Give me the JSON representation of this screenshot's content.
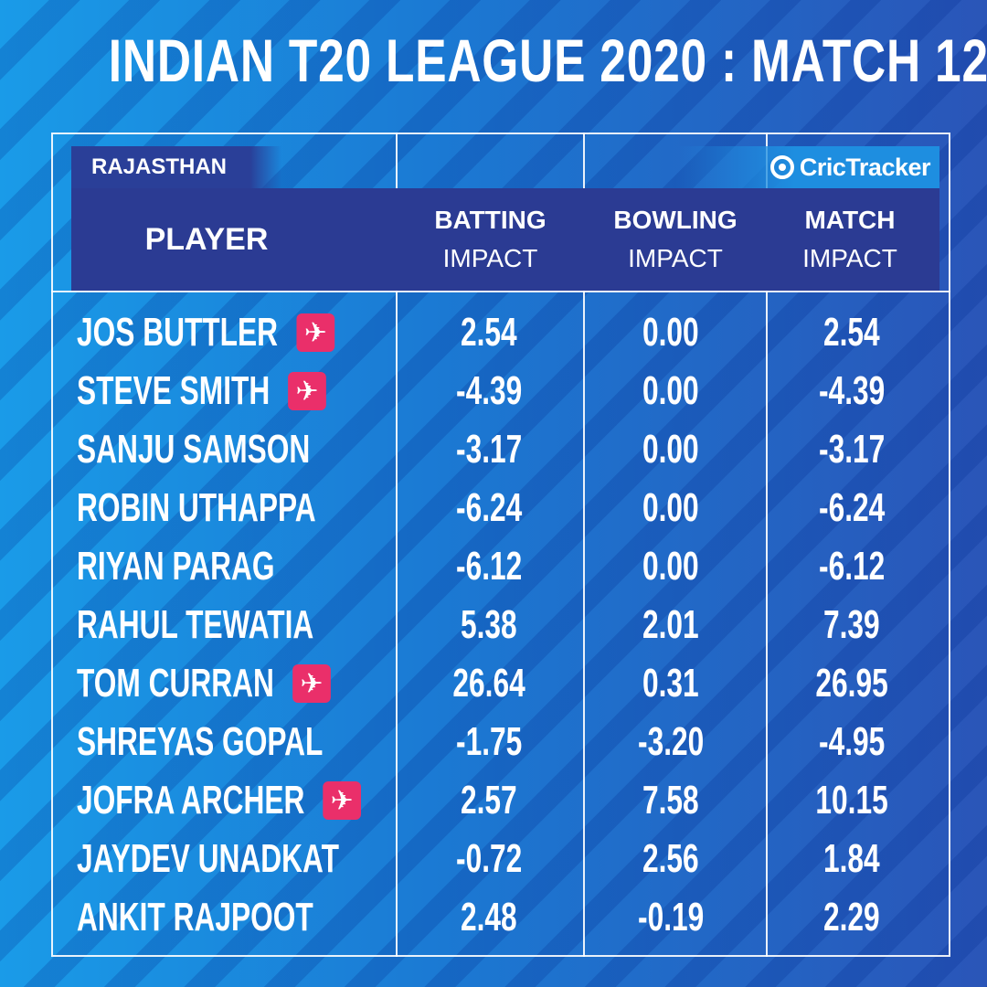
{
  "title": "INDIAN T20 LEAGUE 2020  :  MATCH 12",
  "team": "RAJASTHAN",
  "brand": "CricTracker",
  "headers": {
    "player": "PLAYER",
    "batting_l1": "BATTING",
    "batting_l2": "IMPACT",
    "bowling_l1": "BOWLING",
    "bowling_l2": "IMPACT",
    "match_l1": "MATCH",
    "match_l2": "IMPACT"
  },
  "colors": {
    "overseas_badge": "#ea2f6a",
    "header_band": "#2b3b93"
  },
  "overseas_icon": "airplane-icon",
  "rows": [
    {
      "player": "JOS BUTTLER",
      "overseas": true,
      "batting": "2.54",
      "bowling": "0.00",
      "match": "2.54"
    },
    {
      "player": "STEVE SMITH",
      "overseas": true,
      "batting": "-4.39",
      "bowling": "0.00",
      "match": "-4.39"
    },
    {
      "player": "SANJU SAMSON",
      "overseas": false,
      "batting": "-3.17",
      "bowling": "0.00",
      "match": "-3.17"
    },
    {
      "player": "ROBIN UTHAPPA",
      "overseas": false,
      "batting": "-6.24",
      "bowling": "0.00",
      "match": "-6.24"
    },
    {
      "player": "RIYAN PARAG",
      "overseas": false,
      "batting": "-6.12",
      "bowling": "0.00",
      "match": "-6.12"
    },
    {
      "player": "RAHUL TEWATIA",
      "overseas": false,
      "batting": "5.38",
      "bowling": "2.01",
      "match": "7.39"
    },
    {
      "player": "TOM CURRAN",
      "overseas": true,
      "batting": "26.64",
      "bowling": "0.31",
      "match": "26.95"
    },
    {
      "player": "SHREYAS GOPAL",
      "overseas": false,
      "batting": "-1.75",
      "bowling": "-3.20",
      "match": "-4.95"
    },
    {
      "player": "JOFRA ARCHER",
      "overseas": true,
      "batting": "2.57",
      "bowling": "7.58",
      "match": "10.15"
    },
    {
      "player": "JAYDEV UNADKAT",
      "overseas": false,
      "batting": "-0.72",
      "bowling": "2.56",
      "match": "1.84"
    },
    {
      "player": "ANKIT RAJPOOT",
      "overseas": false,
      "batting": "2.48",
      "bowling": "-0.19",
      "match": "2.29"
    }
  ]
}
